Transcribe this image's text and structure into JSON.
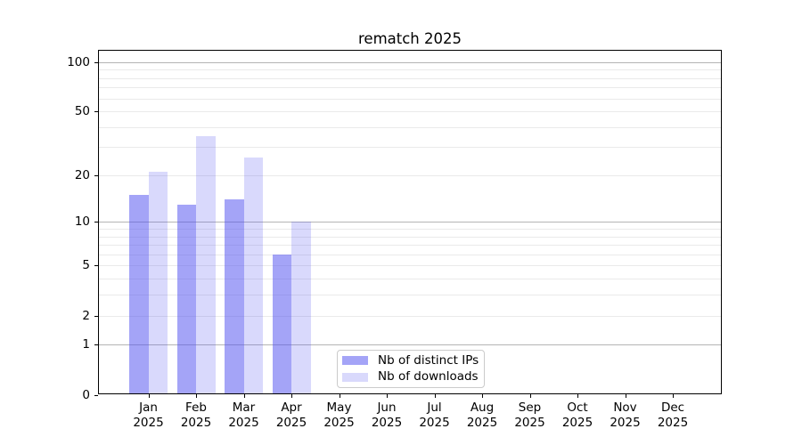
{
  "chart_data": {
    "type": "bar",
    "title": "rematch 2025",
    "categories": [
      "Jan",
      "Feb",
      "Mar",
      "Apr",
      "May",
      "Jun",
      "Jul",
      "Aug",
      "Sep",
      "Oct",
      "Nov",
      "Dec"
    ],
    "category_year": "2025",
    "series": [
      {
        "name": "Nb of distinct IPs",
        "color": "rgba(80,80,240,0.52)",
        "values": [
          15,
          13,
          14,
          6,
          0,
          0,
          0,
          0,
          0,
          0,
          0,
          0
        ]
      },
      {
        "name": "Nb of downloads",
        "color": "rgba(80,80,240,0.22)",
        "values": [
          21,
          35,
          26,
          10,
          0,
          0,
          0,
          0,
          0,
          0,
          0,
          0
        ]
      }
    ],
    "yscale": "log1p",
    "yticks": [
      0,
      1,
      2,
      5,
      10,
      20,
      50,
      100
    ],
    "decade_gridlines": [
      1,
      10,
      100
    ],
    "minor_gridlines": [
      2,
      3,
      4,
      5,
      6,
      7,
      8,
      9,
      20,
      30,
      40,
      50,
      60,
      70,
      80,
      90
    ],
    "ylim": [
      0,
      118
    ],
    "grid": true,
    "legend_position": "lower center, inside plot"
  },
  "colors": {
    "bar_distinct_ips_apparent": "#a4a4f7",
    "bar_downloads_apparent": "#d8d8fb",
    "grid_major": "#b4b4b4",
    "grid_minor": "#eaeaea",
    "axis": "#000000",
    "background": "#ffffff"
  }
}
